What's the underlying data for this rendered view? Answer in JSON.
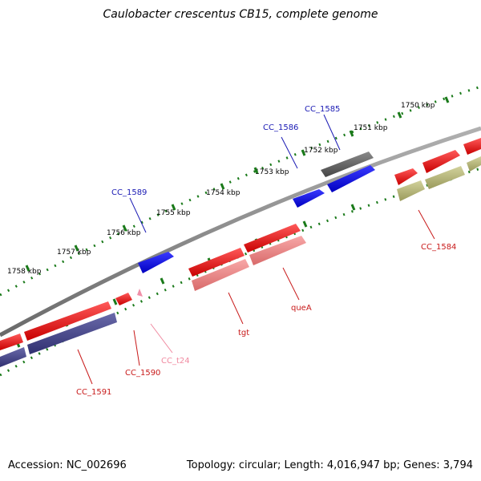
{
  "title": "Caulobacter crescentus CB15, complete genome",
  "accession": "Accession: NC_002696",
  "summary": "Topology: circular; Length: 4,016,947 bp; Genes: 3,794",
  "ticks": [
    "1750 kbp",
    "1751 kbp",
    "1752 kbp",
    "1753 kbp",
    "1754 kbp",
    "1755 kbp",
    "1756 kbp",
    "1757 kbp",
    "1758 kbp"
  ],
  "gene_labels": [
    {
      "id": "cc1585",
      "text": "CC_1585",
      "color": "#1a1ab4"
    },
    {
      "id": "cc1586",
      "text": "CC_1586",
      "color": "#1a1ab4"
    },
    {
      "id": "cc1589",
      "text": "CC_1589",
      "color": "#1a1ab4"
    },
    {
      "id": "cc1584",
      "text": "CC_1584",
      "color": "#c81a1a"
    },
    {
      "id": "quea",
      "text": "queA",
      "color": "#c81a1a"
    },
    {
      "id": "tgt",
      "text": "tgt",
      "color": "#c81a1a"
    },
    {
      "id": "cct24",
      "text": "CC_t24",
      "color": "#f08aa0"
    },
    {
      "id": "cc1590",
      "text": "CC_1590",
      "color": "#c81a1a"
    },
    {
      "id": "cc1591",
      "text": "CC_1591",
      "color": "#c81a1a"
    }
  ],
  "colors": {
    "backbone": "#8c8c8c",
    "tick": "#1a7a1a",
    "forward_cds": "#0000ee",
    "reverse_cds": "#ee0000",
    "forward_gray": "#606060",
    "trna": "#f090a8",
    "rrna_pink": "#f08888",
    "olive": "#b4b478",
    "purple": "#4a4a8c"
  }
}
